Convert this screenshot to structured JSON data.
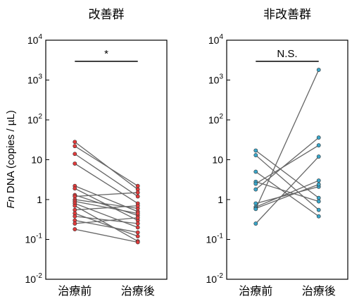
{
  "chart_data": [
    {
      "type": "line",
      "title": "改善群",
      "categories": [
        "治療前",
        "治療後"
      ],
      "ylabel_italic": "Fn",
      "ylabel_rest": " DNA (copies / µL)",
      "yscale": "log",
      "ylim": [
        0.01,
        10000
      ],
      "yticks": [
        {
          "base": "10",
          "exp": "-2"
        },
        {
          "base": "10",
          "exp": "-1"
        },
        {
          "base": "1",
          "exp": ""
        },
        {
          "base": "10",
          "exp": ""
        },
        {
          "base": "10",
          "exp": "2"
        },
        {
          "base": "10",
          "exp": "3"
        },
        {
          "base": "10",
          "exp": "4"
        }
      ],
      "significance": "*",
      "point_color": "#e23b3b",
      "pairs": [
        [
          28,
          1.8
        ],
        [
          22,
          2.2
        ],
        [
          14,
          1.2
        ],
        [
          8,
          0.8
        ],
        [
          2.2,
          0.5
        ],
        [
          1.9,
          0.3
        ],
        [
          1.3,
          0.4
        ],
        [
          1.2,
          1.5
        ],
        [
          1.0,
          0.6
        ],
        [
          0.9,
          0.45
        ],
        [
          0.8,
          0.2
        ],
        [
          0.7,
          0.09
        ],
        [
          0.55,
          0.7
        ],
        [
          0.45,
          0.12
        ],
        [
          0.38,
          0.25
        ],
        [
          0.3,
          0.15
        ],
        [
          0.25,
          0.35
        ],
        [
          0.18,
          0.085
        ]
      ]
    },
    {
      "type": "line",
      "title": "非改善群",
      "categories": [
        "治療前",
        "治療後"
      ],
      "yscale": "log",
      "ylim": [
        0.01,
        10000
      ],
      "yticks": [
        {
          "base": "10",
          "exp": "-2"
        },
        {
          "base": "10",
          "exp": "-1"
        },
        {
          "base": "1",
          "exp": ""
        },
        {
          "base": "10",
          "exp": ""
        },
        {
          "base": "10",
          "exp": "2"
        },
        {
          "base": "10",
          "exp": "3"
        },
        {
          "base": "10",
          "exp": "4"
        }
      ],
      "significance": "N.S.",
      "point_color": "#3aa6c9",
      "pairs": [
        [
          17,
          1.1
        ],
        [
          13,
          0.55
        ],
        [
          5,
          0.38
        ],
        [
          2.8,
          0.9
        ],
        [
          2.5,
          23
        ],
        [
          1.8,
          36
        ],
        [
          0.8,
          2.1
        ],
        [
          0.65,
          3.0
        ],
        [
          0.6,
          2.4
        ],
        [
          0.58,
          1800
        ],
        [
          0.25,
          12
        ]
      ]
    }
  ]
}
